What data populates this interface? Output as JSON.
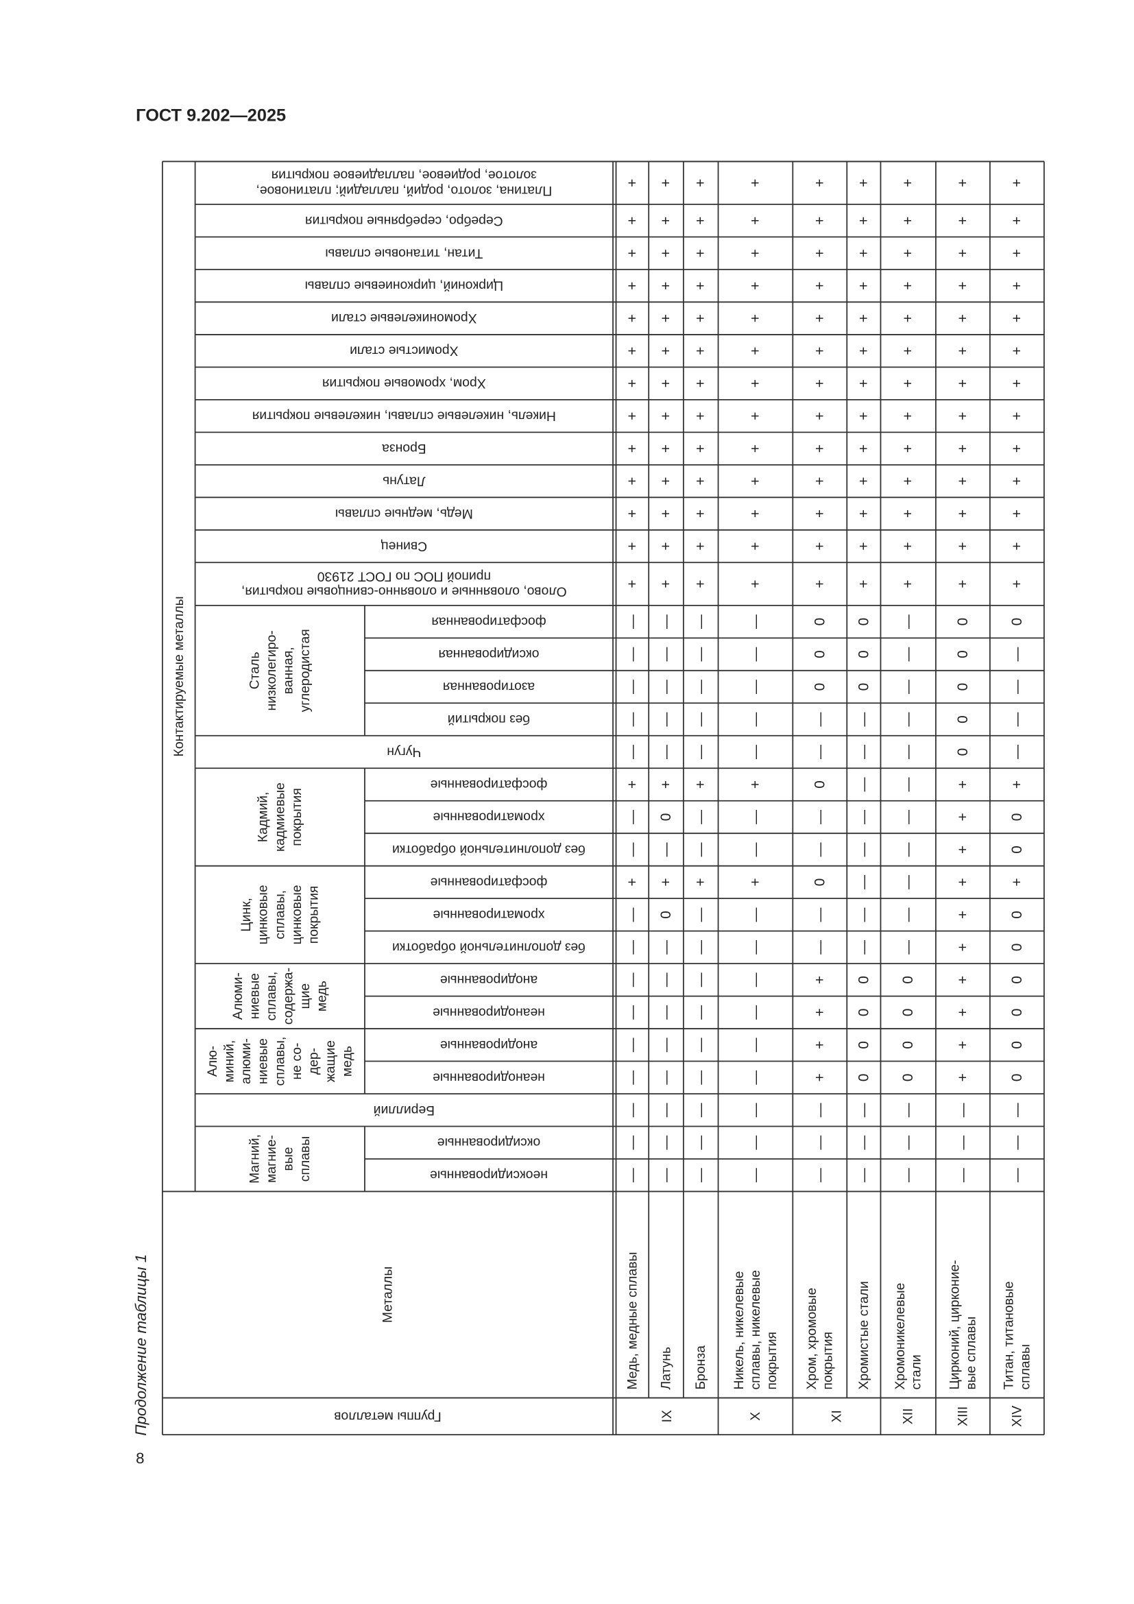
{
  "header": {
    "title": "ГОСТ 9.202—2025",
    "caption": "Продолжение таблицы 1",
    "page_number": "8"
  },
  "table": {
    "group_header": "Группы металлов",
    "metal_header": "Металлы",
    "contact_header": "Контактируемые металлы",
    "groups": [
      {
        "label": "IX",
        "metals": [
          [
            "Медь, медные сплавы"
          ],
          [
            "Латунь"
          ],
          [
            "Бронза"
          ]
        ]
      },
      {
        "label": "X",
        "metals": [
          [
            "Никель, никелевые",
            "сплавы, никелевые",
            "покрытия"
          ]
        ]
      },
      {
        "label": "XI",
        "metals": [
          [
            "Хром, хромовые",
            "покрытия"
          ],
          [
            "Хромистые стали"
          ]
        ]
      },
      {
        "label": "XII",
        "metals": [
          [
            "Хромоникелевые",
            "стали"
          ]
        ]
      },
      {
        "label": "XIII",
        "metals": [
          [
            "Цирконий, цирконие-",
            "вые сплавы"
          ]
        ]
      },
      {
        "label": "XIV",
        "metals": [
          [
            "Титан, титановые",
            "сплавы"
          ]
        ]
      }
    ],
    "contacts": [
      {
        "group": [
          "Магний,",
          "магние-",
          "вые",
          "сплавы"
        ],
        "items": [
          {
            "label": [
              "неоксидированные"
            ],
            "values": [
              "—",
              "—",
              "—",
              "—",
              "—",
              "—",
              "—",
              "—",
              "—"
            ]
          },
          {
            "label": [
              "оксидированные"
            ],
            "values": [
              "—",
              "—",
              "—",
              "—",
              "—",
              "—",
              "—",
              "—",
              "—"
            ]
          }
        ]
      },
      {
        "label": [
          "Бериллий"
        ],
        "values": [
          "—",
          "—",
          "—",
          "—",
          "—",
          "—",
          "—",
          "—",
          "—"
        ]
      },
      {
        "group": [
          "Алю-",
          "миний,",
          "алюми-",
          "ниевые",
          "сплавы,",
          "не со-",
          "дер-",
          "жащие",
          "медь"
        ],
        "items": [
          {
            "label": [
              "неанодированные"
            ],
            "values": [
              "—",
              "—",
              "—",
              "—",
              "+",
              "0",
              "0",
              "+",
              "0"
            ]
          },
          {
            "label": [
              "анодированные"
            ],
            "values": [
              "—",
              "—",
              "—",
              "—",
              "+",
              "0",
              "0",
              "+",
              "0"
            ]
          }
        ]
      },
      {
        "group": [
          "Алюми-",
          "ниевые",
          "сплавы,",
          "содержа-",
          "щие",
          "медь"
        ],
        "items": [
          {
            "label": [
              "неанодированные"
            ],
            "values": [
              "—",
              "—",
              "—",
              "—",
              "+",
              "0",
              "0",
              "+",
              "0"
            ]
          },
          {
            "label": [
              "анодированные"
            ],
            "values": [
              "—",
              "—",
              "—",
              "—",
              "+",
              "0",
              "0",
              "+",
              "0"
            ]
          }
        ]
      },
      {
        "group": [
          "Цинк,",
          "цинковые",
          "сплавы,",
          "цинковые",
          "покрытия"
        ],
        "items": [
          {
            "label": [
              "без дополнительной обработки"
            ],
            "values": [
              "—",
              "—",
              "—",
              "—",
              "—",
              "—",
              "—",
              "+",
              "0"
            ]
          },
          {
            "label": [
              "хроматированные"
            ],
            "values": [
              "—",
              "0",
              "—",
              "—",
              "—",
              "—",
              "—",
              "+",
              "0"
            ]
          },
          {
            "label": [
              "фосфатированные"
            ],
            "values": [
              "+",
              "+",
              "+",
              "+",
              "0",
              "—",
              "—",
              "+",
              "+"
            ]
          }
        ]
      },
      {
        "group": [
          "Кадмий,",
          "кадмиевые",
          "покрытия"
        ],
        "items": [
          {
            "label": [
              "без дополнительной обработки"
            ],
            "values": [
              "—",
              "—",
              "—",
              "—",
              "—",
              "—",
              "—",
              "+",
              "0"
            ]
          },
          {
            "label": [
              "хроматированные"
            ],
            "values": [
              "—",
              "0",
              "—",
              "—",
              "—",
              "—",
              "—",
              "+",
              "0"
            ]
          },
          {
            "label": [
              "фосфатированные"
            ],
            "values": [
              "+",
              "+",
              "+",
              "+",
              "0",
              "—",
              "—",
              "+",
              "+"
            ]
          }
        ]
      },
      {
        "label": [
          "Чугун"
        ],
        "values": [
          "—",
          "—",
          "—",
          "—",
          "—",
          "—",
          "—",
          "0",
          "—"
        ]
      },
      {
        "group": [
          "Сталь",
          "низколегиро-",
          "ванная,",
          "углеродистая"
        ],
        "items": [
          {
            "label": [
              "без покрытий"
            ],
            "values": [
              "—",
              "—",
              "—",
              "—",
              "—",
              "—",
              "—",
              "0",
              "—"
            ]
          },
          {
            "label": [
              "азотированная"
            ],
            "values": [
              "—",
              "—",
              "—",
              "—",
              "0",
              "0",
              "—",
              "0",
              "—"
            ]
          },
          {
            "label": [
              "оксидированная"
            ],
            "values": [
              "—",
              "—",
              "—",
              "—",
              "0",
              "0",
              "—",
              "0",
              "—"
            ]
          },
          {
            "label": [
              "фосфатированная"
            ],
            "values": [
              "—",
              "—",
              "—",
              "—",
              "0",
              "0",
              "—",
              "0",
              "0"
            ]
          }
        ]
      },
      {
        "label": [
          "Олово, оловянные и оловянно-свинцовые покрытия,",
          "припой ПОС по ГОСТ 21930"
        ],
        "values": [
          "+",
          "+",
          "+",
          "+",
          "+",
          "+",
          "+",
          "+",
          "+"
        ]
      },
      {
        "label": [
          "Свинец"
        ],
        "values": [
          "+",
          "+",
          "+",
          "+",
          "+",
          "+",
          "+",
          "+",
          "+"
        ]
      },
      {
        "label": [
          "Медь, медные сплавы"
        ],
        "values": [
          "+",
          "+",
          "+",
          "+",
          "+",
          "+",
          "+",
          "+",
          "+"
        ]
      },
      {
        "label": [
          "Латунь"
        ],
        "values": [
          "+",
          "+",
          "+",
          "+",
          "+",
          "+",
          "+",
          "+",
          "+"
        ]
      },
      {
        "label": [
          "Бронза"
        ],
        "values": [
          "+",
          "+",
          "+",
          "+",
          "+",
          "+",
          "+",
          "+",
          "+"
        ]
      },
      {
        "label": [
          "Никель, никелевые сплавы, никелевые покрытия"
        ],
        "values": [
          "+",
          "+",
          "+",
          "+",
          "+",
          "+",
          "+",
          "+",
          "+"
        ]
      },
      {
        "label": [
          "Хром, хромовые покрытия"
        ],
        "values": [
          "+",
          "+",
          "+",
          "+",
          "+",
          "+",
          "+",
          "+",
          "+"
        ]
      },
      {
        "label": [
          "Хромистые стали"
        ],
        "values": [
          "+",
          "+",
          "+",
          "+",
          "+",
          "+",
          "+",
          "+",
          "+"
        ]
      },
      {
        "label": [
          "Хромоникелевые стали"
        ],
        "values": [
          "+",
          "+",
          "+",
          "+",
          "+",
          "+",
          "+",
          "+",
          "+"
        ]
      },
      {
        "label": [
          "Цирконий, циркониевые сплавы"
        ],
        "values": [
          "+",
          "+",
          "+",
          "+",
          "+",
          "+",
          "+",
          "+",
          "+"
        ]
      },
      {
        "label": [
          "Титан, титановые сплавы"
        ],
        "values": [
          "+",
          "+",
          "+",
          "+",
          "+",
          "+",
          "+",
          "+",
          "+"
        ]
      },
      {
        "label": [
          "Серебро, серебряные покрытия"
        ],
        "values": [
          "+",
          "+",
          "+",
          "+",
          "+",
          "+",
          "+",
          "+",
          "+"
        ]
      },
      {
        "label": [
          "Платина, золото, родий, палладий; платиновое,",
          "золотое, родиевое, палладиевое покрытия"
        ],
        "values": [
          "+",
          "+",
          "+",
          "+",
          "+",
          "+",
          "+",
          "+",
          "+"
        ]
      }
    ]
  }
}
